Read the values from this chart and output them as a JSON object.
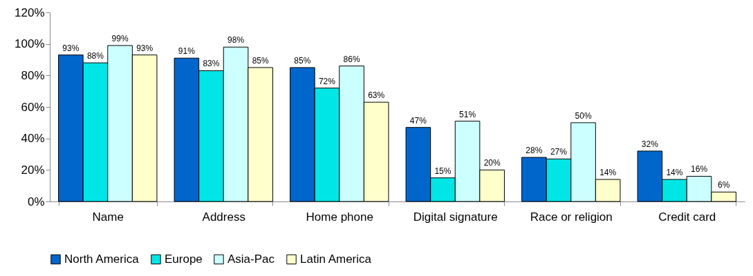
{
  "chart_data": {
    "type": "bar",
    "categories": [
      "Name",
      "Address",
      "Home phone",
      "Digital signature",
      "Race or religion",
      "Credit card"
    ],
    "series": [
      {
        "name": "North America",
        "color": "#0066cc",
        "values": [
          93,
          91,
          85,
          47,
          28,
          32
        ],
        "value_labels": [
          "93%",
          "91%",
          "85%",
          "47%",
          "28%",
          "32%"
        ]
      },
      {
        "name": "Europe",
        "color": "#00e5e5",
        "values": [
          88,
          83,
          72,
          15,
          27,
          14
        ],
        "value_labels": [
          "88%",
          "83%",
          "72%",
          "15%",
          "27%",
          "14%"
        ]
      },
      {
        "name": "Asia-Pac",
        "color": "#ccffff",
        "values": [
          99,
          98,
          86,
          51,
          50,
          16
        ],
        "value_labels": [
          "99%",
          "98%",
          "86%",
          "51%",
          "50%",
          "16%"
        ]
      },
      {
        "name": "Latin America",
        "color": "#ffffcc",
        "values": [
          93,
          85,
          63,
          20,
          14,
          6
        ],
        "value_labels": [
          "93%",
          "85%",
          "63%",
          "20%",
          "14%",
          "6%"
        ]
      }
    ],
    "ylim": [
      0,
      120
    ],
    "yticks": [
      {
        "value": 0,
        "label": "0%"
      },
      {
        "value": 20,
        "label": "20%"
      },
      {
        "value": 40,
        "label": "40%"
      },
      {
        "value": 60,
        "label": "60%"
      },
      {
        "value": 80,
        "label": "80%"
      },
      {
        "value": 100,
        "label": "100%"
      },
      {
        "value": 120,
        "label": "120%"
      }
    ],
    "grid": false,
    "legend": "bottom"
  }
}
